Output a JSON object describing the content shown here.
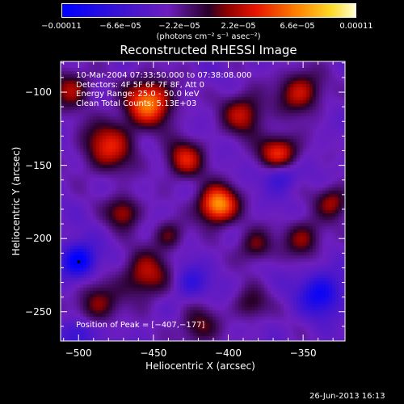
{
  "chart_data": {
    "type": "heatmap",
    "title": "Reconstructed RHESSI Image",
    "xlabel": "Heliocentric X (arcsec)",
    "ylabel": "Heliocentric Y (arcsec)",
    "xlim": [
      -512,
      -322
    ],
    "ylim": [
      -270,
      -79
    ],
    "x_ticks": [
      "−500",
      "−450",
      "−400",
      "−350"
    ],
    "x_tick_values": [
      -500,
      -450,
      -400,
      -350
    ],
    "y_ticks": [
      "−100",
      "−150",
      "−200",
      "−250"
    ],
    "y_tick_values": [
      -100,
      -150,
      -200,
      -250
    ],
    "colorbar": {
      "range": [
        -0.00011,
        0.00011
      ],
      "ticks": [
        "−0.00011",
        "−6.6e−05",
        "−2.2e−05",
        "2.2e−05",
        "6.6e−05",
        "0.00011"
      ],
      "tick_values": [
        -0.00011,
        -6.6e-05,
        -2.2e-05,
        2.2e-05,
        6.6e-05,
        0.00011
      ],
      "label": "(photons cm⁻² s⁻¹ asec⁻²)"
    },
    "info_lines": [
      "10-Mar-2004 07:33:50.000 to 07:38:08.000",
      "Detectors: 4F 5F 6F 7F 8F, Att 0",
      "Energy Range: 25.0 - 50.0 keV",
      "Clean     Total Counts: 5.13E+03"
    ],
    "peak_label": "Position of Peak = [−407,−177]",
    "peak": [
      -407,
      -177
    ],
    "blobs": [
      {
        "x": -407,
        "y": -177,
        "amp": 1.0,
        "r": 9
      },
      {
        "x": -453,
        "y": -107,
        "amp": 0.88,
        "r": 11
      },
      {
        "x": -366,
        "y": -143,
        "amp": 0.8,
        "r": 9
      },
      {
        "x": -480,
        "y": -137,
        "amp": 0.62,
        "r": 12
      },
      {
        "x": -429,
        "y": -146,
        "amp": 0.6,
        "r": 9
      },
      {
        "x": -352,
        "y": -100,
        "amp": 0.58,
        "r": 10
      },
      {
        "x": -390,
        "y": -115,
        "amp": 0.55,
        "r": 10
      },
      {
        "x": -505,
        "y": -98,
        "amp": 0.5,
        "r": 9
      },
      {
        "x": -470,
        "y": -182,
        "amp": 0.5,
        "r": 8
      },
      {
        "x": -455,
        "y": -225,
        "amp": 0.55,
        "r": 11
      },
      {
        "x": -488,
        "y": -245,
        "amp": 0.45,
        "r": 10
      },
      {
        "x": -382,
        "y": -205,
        "amp": 0.42,
        "r": 8
      },
      {
        "x": -350,
        "y": -200,
        "amp": 0.45,
        "r": 9
      },
      {
        "x": -420,
        "y": -260,
        "amp": 0.4,
        "r": 9
      },
      {
        "x": -330,
        "y": -175,
        "amp": 0.48,
        "r": 8
      },
      {
        "x": -385,
        "y": -245,
        "amp": 0.35,
        "r": 8
      },
      {
        "x": -440,
        "y": -198,
        "amp": 0.38,
        "r": 7
      },
      {
        "x": -500,
        "y": -215,
        "amp": -0.75,
        "r": 8
      },
      {
        "x": -338,
        "y": -238,
        "amp": -0.6,
        "r": 10
      },
      {
        "x": -365,
        "y": -155,
        "amp": -0.5,
        "r": 8
      },
      {
        "x": -425,
        "y": -230,
        "amp": -0.35,
        "r": 8
      },
      {
        "x": -500,
        "y": -265,
        "amp": -0.4,
        "r": 8
      }
    ]
  },
  "footer": {
    "date": "26-Jun-2013 16:13"
  }
}
